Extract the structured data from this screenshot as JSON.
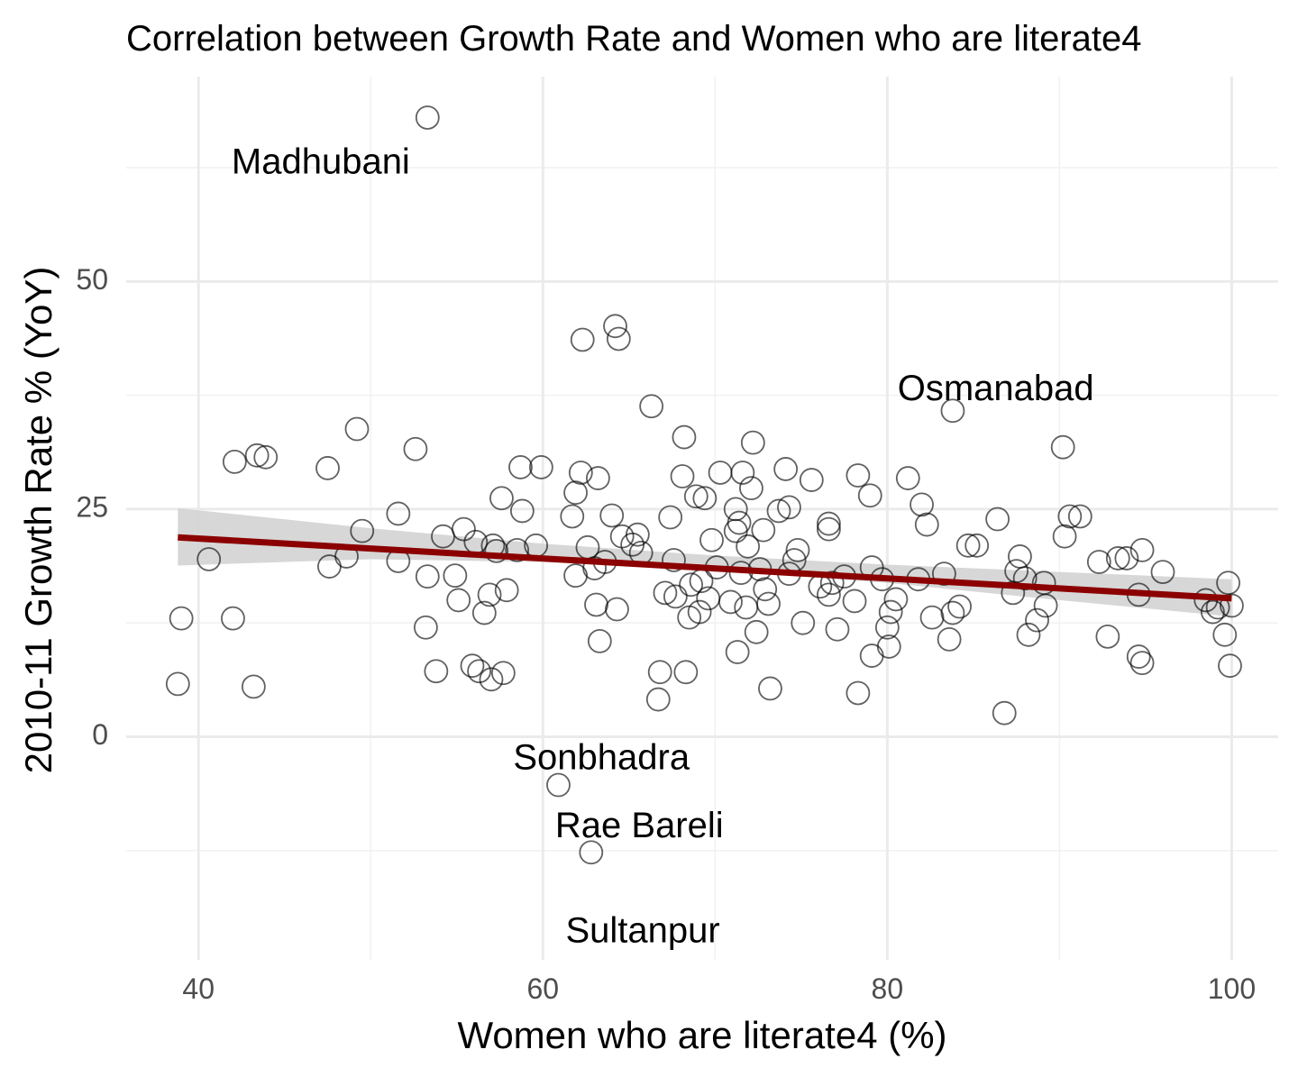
{
  "chart_data": {
    "type": "scatter",
    "title": "Correlation between Growth Rate and Women who are literate4",
    "xlabel": "Women who are literate4 (%)",
    "ylabel": "2010-11 Growth Rate % (YoY)",
    "xlim": [
      35.8,
      102.7
    ],
    "ylim": [
      -24.5,
      72.5
    ],
    "x_ticks": [
      40,
      60,
      80,
      100
    ],
    "y_ticks": [
      0,
      25,
      50
    ],
    "grid": true,
    "point_style": "hollow circle",
    "points": [
      [
        38.8,
        5.8
      ],
      [
        39.0,
        13.0
      ],
      [
        40.6,
        19.5
      ],
      [
        42.0,
        13.0
      ],
      [
        42.1,
        30.2
      ],
      [
        43.2,
        5.5
      ],
      [
        43.4,
        30.9
      ],
      [
        43.9,
        30.7
      ],
      [
        47.5,
        29.5
      ],
      [
        47.6,
        18.7
      ],
      [
        48.6,
        19.8
      ],
      [
        49.2,
        33.8
      ],
      [
        49.5,
        22.6
      ],
      [
        51.6,
        24.5
      ],
      [
        51.6,
        19.3
      ],
      [
        52.6,
        31.6
      ],
      [
        53.2,
        12.0
      ],
      [
        53.3,
        17.6
      ],
      [
        53.3,
        68.0
      ],
      [
        53.8,
        7.2
      ],
      [
        54.2,
        22.0
      ],
      [
        54.9,
        17.7
      ],
      [
        55.1,
        15.0
      ],
      [
        55.4,
        22.8
      ],
      [
        55.9,
        7.8
      ],
      [
        56.1,
        21.4
      ],
      [
        56.3,
        7.2
      ],
      [
        56.6,
        13.6
      ],
      [
        56.9,
        15.6
      ],
      [
        57.0,
        6.3
      ],
      [
        57.1,
        21.0
      ],
      [
        57.3,
        20.4
      ],
      [
        57.6,
        26.2
      ],
      [
        57.7,
        7.0
      ],
      [
        57.9,
        16.1
      ],
      [
        58.5,
        20.5
      ],
      [
        58.7,
        29.6
      ],
      [
        58.8,
        24.8
      ],
      [
        59.6,
        21.0
      ],
      [
        59.9,
        29.6
      ],
      [
        60.9,
        -5.3
      ],
      [
        61.7,
        24.2
      ],
      [
        61.9,
        26.8
      ],
      [
        61.9,
        17.7
      ],
      [
        62.2,
        29.0
      ],
      [
        62.3,
        43.6
      ],
      [
        62.6,
        20.8
      ],
      [
        62.8,
        -12.7
      ],
      [
        63.0,
        18.5
      ],
      [
        63.1,
        14.5
      ],
      [
        63.2,
        28.4
      ],
      [
        63.3,
        10.5
      ],
      [
        63.6,
        19.2
      ],
      [
        64.0,
        24.3
      ],
      [
        64.2,
        45.1
      ],
      [
        64.4,
        43.7
      ],
      [
        64.3,
        14.0
      ],
      [
        64.6,
        22.0
      ],
      [
        65.2,
        21.1
      ],
      [
        65.5,
        22.2
      ],
      [
        65.7,
        20.2
      ],
      [
        66.3,
        36.3
      ],
      [
        66.7,
        4.1
      ],
      [
        66.8,
        7.1
      ],
      [
        67.1,
        15.8
      ],
      [
        67.4,
        24.1
      ],
      [
        67.6,
        19.4
      ],
      [
        67.7,
        15.4
      ],
      [
        68.1,
        28.6
      ],
      [
        68.2,
        32.9
      ],
      [
        68.3,
        7.1
      ],
      [
        68.5,
        13.1
      ],
      [
        68.6,
        16.7
      ],
      [
        68.9,
        26.4
      ],
      [
        69.1,
        13.7
      ],
      [
        69.2,
        17.1
      ],
      [
        69.4,
        26.2
      ],
      [
        69.6,
        15.2
      ],
      [
        69.8,
        21.6
      ],
      [
        70.1,
        18.6
      ],
      [
        70.3,
        29.0
      ],
      [
        70.9,
        14.8
      ],
      [
        71.2,
        25.0
      ],
      [
        71.2,
        22.6
      ],
      [
        71.3,
        9.3
      ],
      [
        71.4,
        23.5
      ],
      [
        71.5,
        18.0
      ],
      [
        71.6,
        29.0
      ],
      [
        71.8,
        14.2
      ],
      [
        71.9,
        20.9
      ],
      [
        72.1,
        27.3
      ],
      [
        72.2,
        32.3
      ],
      [
        72.4,
        11.5
      ],
      [
        72.6,
        18.4
      ],
      [
        72.8,
        22.7
      ],
      [
        72.9,
        16.2
      ],
      [
        73.1,
        14.6
      ],
      [
        73.2,
        5.3
      ],
      [
        73.7,
        24.8
      ],
      [
        74.1,
        29.4
      ],
      [
        74.3,
        25.2
      ],
      [
        74.3,
        17.9
      ],
      [
        74.6,
        19.4
      ],
      [
        74.8,
        20.5
      ],
      [
        75.1,
        12.5
      ],
      [
        75.6,
        28.2
      ],
      [
        76.1,
        16.5
      ],
      [
        76.6,
        15.6
      ],
      [
        76.6,
        22.8
      ],
      [
        76.6,
        23.4
      ],
      [
        76.8,
        16.9
      ],
      [
        77.1,
        11.8
      ],
      [
        77.5,
        17.6
      ],
      [
        78.1,
        14.9
      ],
      [
        78.3,
        4.8
      ],
      [
        78.3,
        28.7
      ],
      [
        79.0,
        26.5
      ],
      [
        79.1,
        8.9
      ],
      [
        79.1,
        18.6
      ],
      [
        79.7,
        17.3
      ],
      [
        80.0,
        12.0
      ],
      [
        80.1,
        9.9
      ],
      [
        80.2,
        13.7
      ],
      [
        80.5,
        15.1
      ],
      [
        81.2,
        28.4
      ],
      [
        81.8,
        17.3
      ],
      [
        82.0,
        25.5
      ],
      [
        82.3,
        23.3
      ],
      [
        82.6,
        13.1
      ],
      [
        83.3,
        17.9
      ],
      [
        83.6,
        10.7
      ],
      [
        83.8,
        13.6
      ],
      [
        83.8,
        35.8
      ],
      [
        84.2,
        14.3
      ],
      [
        84.7,
        21.0
      ],
      [
        85.2,
        21.0
      ],
      [
        86.4,
        23.9
      ],
      [
        86.8,
        2.6
      ],
      [
        87.3,
        15.8
      ],
      [
        87.5,
        18.2
      ],
      [
        87.7,
        19.8
      ],
      [
        88.0,
        17.4
      ],
      [
        88.2,
        11.2
      ],
      [
        88.7,
        12.8
      ],
      [
        89.2,
        14.4
      ],
      [
        89.1,
        16.9
      ],
      [
        90.2,
        31.8
      ],
      [
        90.3,
        22.0
      ],
      [
        90.6,
        24.2
      ],
      [
        91.2,
        24.2
      ],
      [
        92.3,
        19.2
      ],
      [
        92.8,
        11.0
      ],
      [
        93.4,
        19.6
      ],
      [
        93.9,
        19.6
      ],
      [
        94.6,
        15.6
      ],
      [
        94.6,
        8.8
      ],
      [
        94.8,
        20.5
      ],
      [
        94.8,
        8.1
      ],
      [
        96.0,
        18.1
      ],
      [
        98.5,
        15.0
      ],
      [
        98.9,
        13.7
      ],
      [
        99.2,
        14.2
      ],
      [
        99.6,
        11.2
      ],
      [
        99.8,
        16.9
      ],
      [
        99.9,
        7.8
      ],
      [
        100.0,
        14.4
      ]
    ],
    "trend_line": {
      "x": [
        38.8,
        100.0
      ],
      "y": [
        21.9,
        15.2
      ],
      "color": "#8b0000"
    },
    "confidence_band": {
      "x": [
        38.8,
        50,
        60,
        70,
        80,
        90,
        100
      ],
      "upper": [
        25.1,
        22.9,
        21.2,
        19.9,
        18.9,
        18.1,
        17.3
      ],
      "lower": [
        18.8,
        19.5,
        19.2,
        18.3,
        16.9,
        15.0,
        13.2
      ],
      "color": "#d3d3d3"
    },
    "annotations": [
      {
        "label": "Madhubani",
        "x": 47.1,
        "y": 62.9
      },
      {
        "label": "Osmanabad",
        "x": 86.3,
        "y": 38.0
      },
      {
        "label": "Sonbhadra",
        "x": 63.4,
        "y": -2.5
      },
      {
        "label": "Rae Bareli",
        "x": 65.6,
        "y": -10.0
      },
      {
        "label": "Sultanpur",
        "x": 65.8,
        "y": -21.5
      }
    ]
  }
}
